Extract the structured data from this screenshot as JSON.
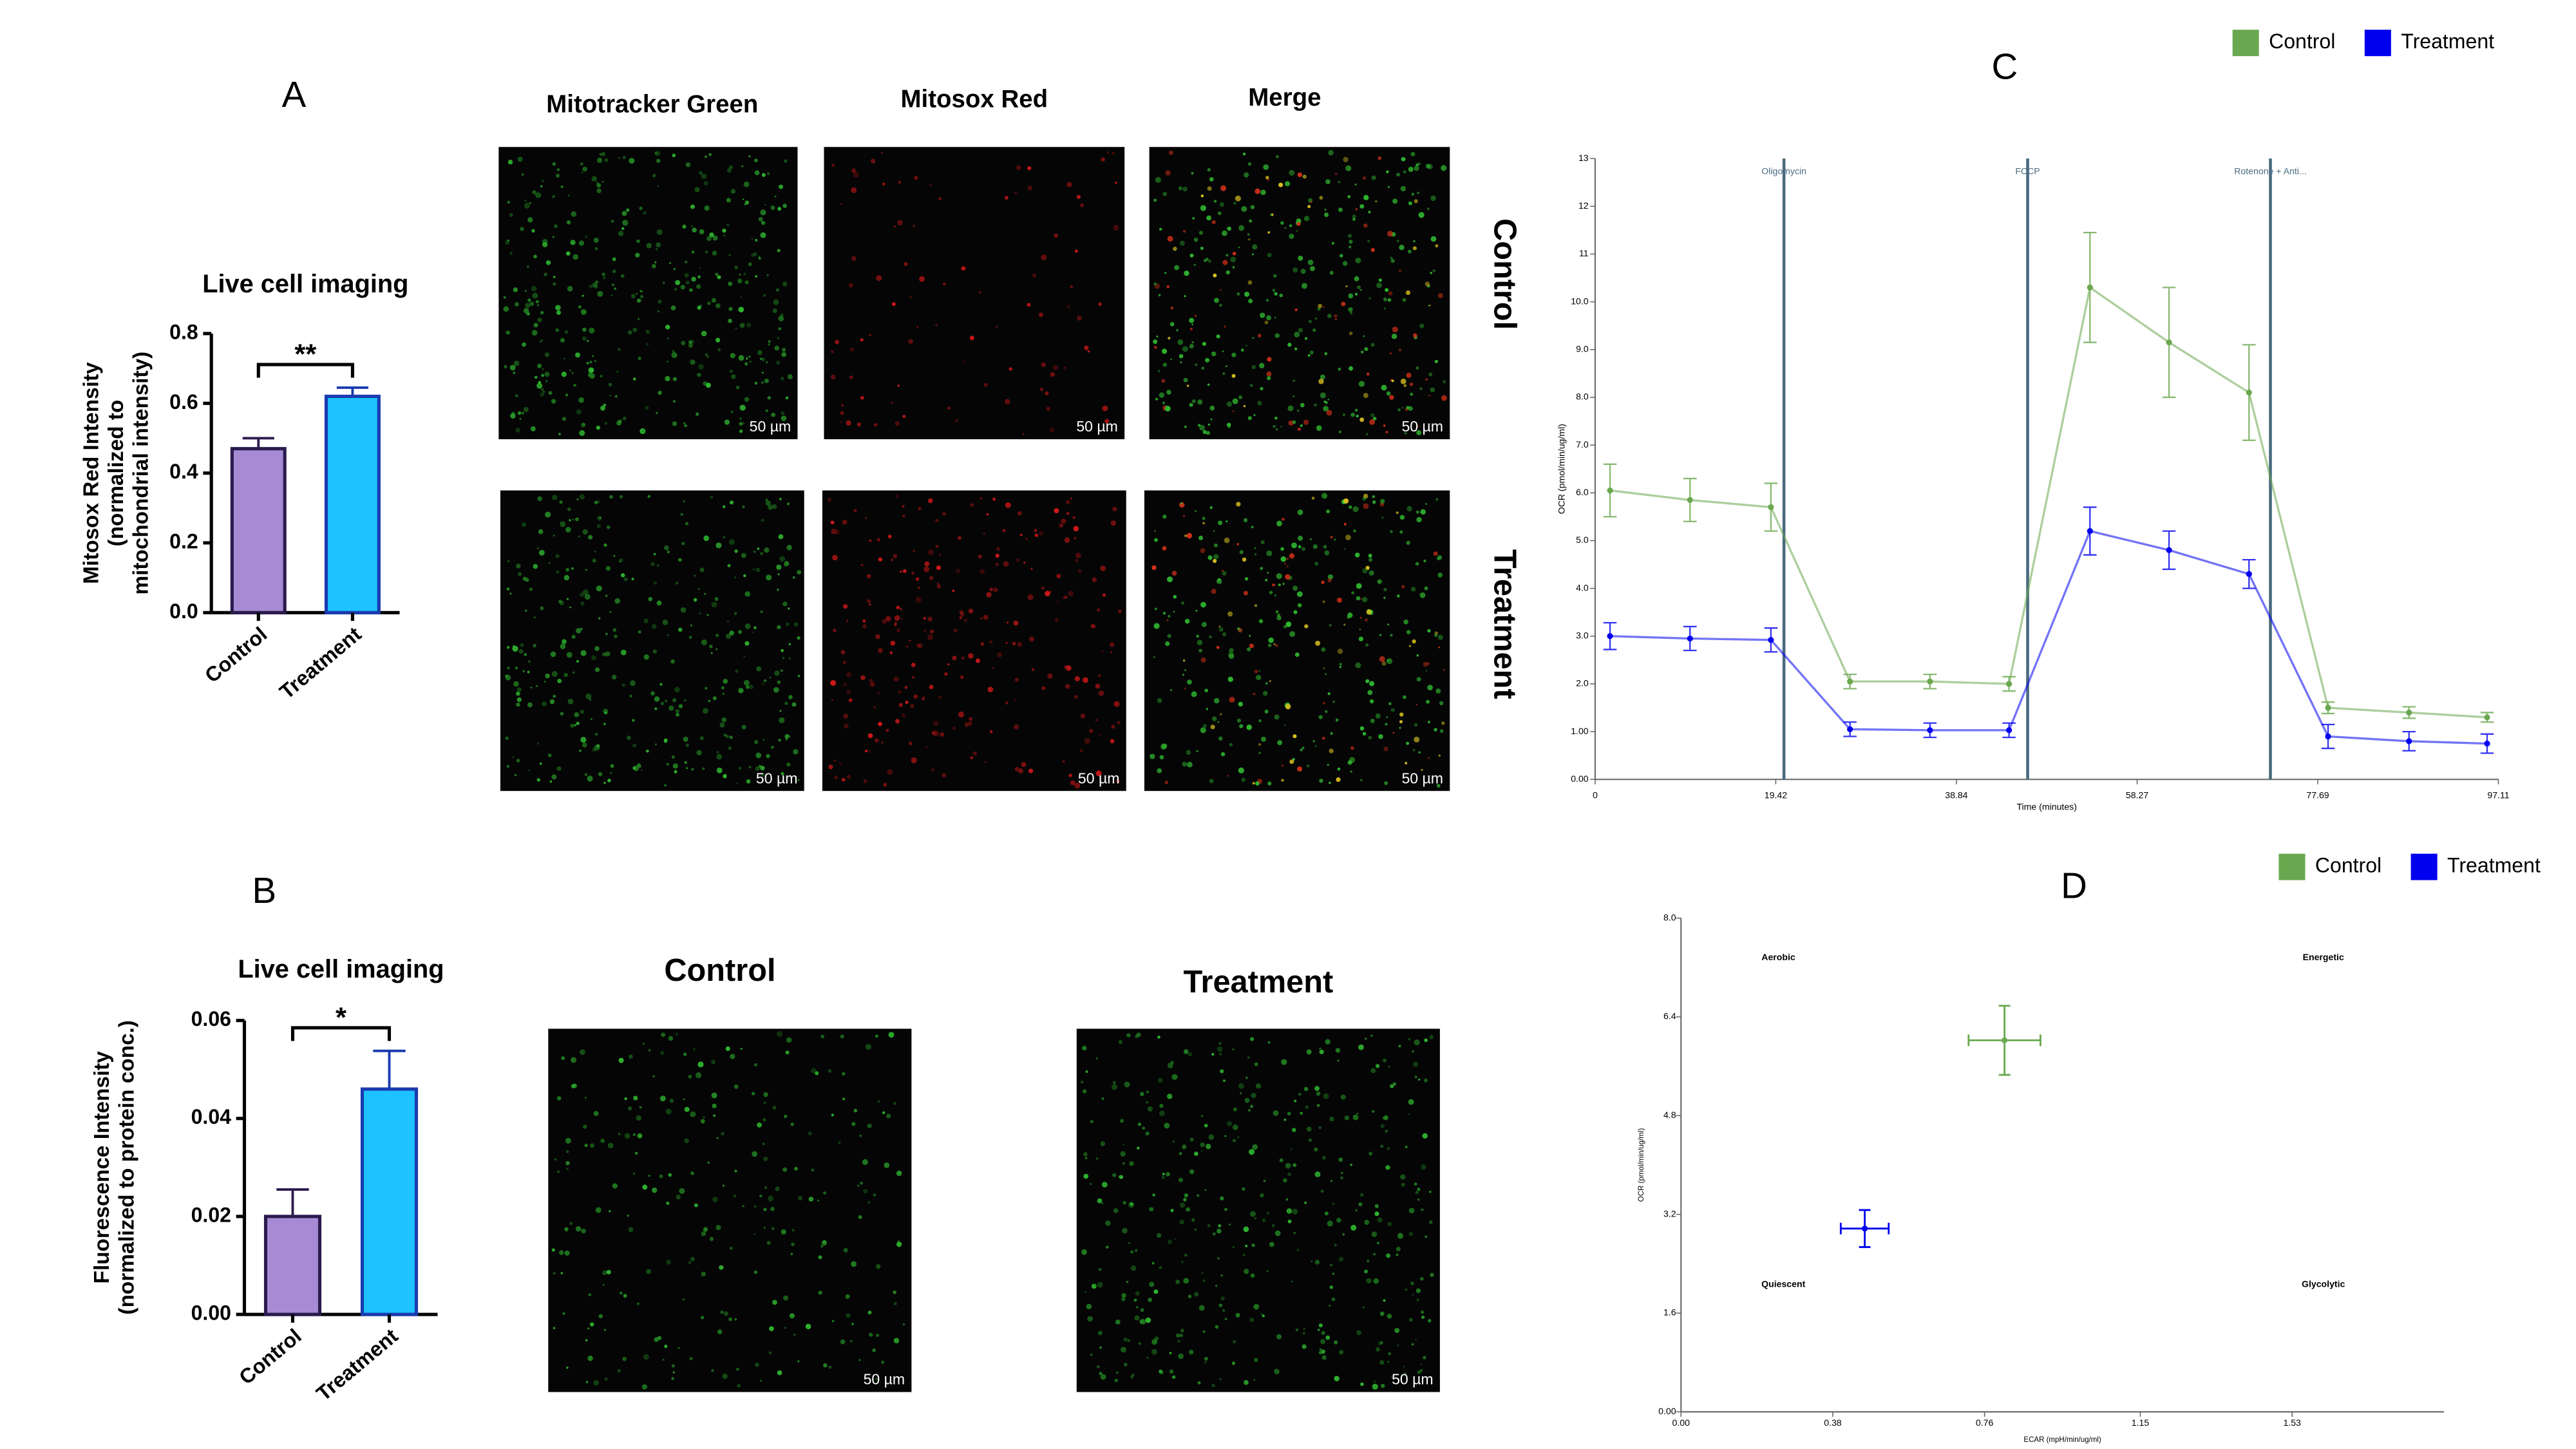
{
  "chart_data": [
    {
      "type": "bar",
      "panel_label": "A",
      "title": "Live cell imaging",
      "ylabel": [
        "Mitosox Red Intensity",
        "(normalized to",
        "mitochondrial intensity)"
      ],
      "categories": [
        "Control",
        "Treatment"
      ],
      "values": [
        0.47,
        0.62
      ],
      "errors": [
        0.03,
        0.025
      ],
      "colors": [
        "#a68bd4",
        "#1dc2ff"
      ],
      "edge_colors": [
        "#2b1a4d",
        "#1a3bb0"
      ],
      "ylim": [
        0,
        0.8
      ],
      "yticks": [
        {
          "value": 0,
          "label": "0.0"
        },
        {
          "value": 0.2,
          "label": "0.2"
        },
        {
          "value": 0.4,
          "label": "0.4"
        },
        {
          "value": 0.6,
          "label": "0.6"
        },
        {
          "value": 0.8,
          "label": "0.8"
        }
      ],
      "significance": "**"
    },
    {
      "type": "bar",
      "panel_label": "B",
      "title": "Live cell imaging",
      "ylabel": [
        "Fluorescence Intensity",
        "(normalized to protein conc.)"
      ],
      "categories": [
        "Control",
        "Treatment"
      ],
      "values": [
        0.02,
        0.046
      ],
      "errors": [
        0.0055,
        0.0078
      ],
      "colors": [
        "#a68bd4",
        "#1dc2ff"
      ],
      "edge_colors": [
        "#2b1a4d",
        "#1a3bb0"
      ],
      "ylim": [
        0,
        0.06
      ],
      "yticks": [
        {
          "value": 0,
          "label": "0.00"
        },
        {
          "value": 0.02,
          "label": "0.02"
        },
        {
          "value": 0.04,
          "label": "0.04"
        },
        {
          "value": 0.06,
          "label": "0.06"
        }
      ],
      "significance": "*"
    },
    {
      "type": "line",
      "panel_label": "C",
      "xlabel": "Time (minutes)",
      "ylabel": "OCR (pmol/min/ug/ml)",
      "x": [
        1.6,
        10.2,
        18.9,
        27.4,
        36,
        44.5,
        53.2,
        61.7,
        70.3,
        78.8,
        87.5,
        95.9
      ],
      "series": [
        {
          "name": "Control",
          "color": "#6aa84f",
          "values": [
            6.05,
            5.85,
            5.7,
            2.05,
            2.05,
            2.0,
            10.3,
            9.15,
            8.1,
            1.5,
            1.4,
            1.3
          ],
          "errors": [
            0.55,
            0.45,
            0.5,
            0.15,
            0.15,
            0.15,
            1.15,
            1.15,
            1.0,
            0.12,
            0.12,
            0.1
          ]
        },
        {
          "name": "Treatment",
          "color": "#0000ee",
          "values": [
            3.0,
            2.95,
            2.92,
            1.05,
            1.03,
            1.03,
            5.2,
            4.8,
            4.3,
            0.9,
            0.8,
            0.75
          ],
          "errors": [
            0.28,
            0.25,
            0.25,
            0.15,
            0.15,
            0.15,
            0.5,
            0.4,
            0.3,
            0.25,
            0.2,
            0.2
          ]
        }
      ],
      "events": [
        {
          "x": 20.3,
          "label": "Oligomycin"
        },
        {
          "x": 46.5,
          "label": "FCCP"
        },
        {
          "x": 72.6,
          "label": "Rotenone + Anti..."
        }
      ],
      "xlim": [
        0,
        97.11
      ],
      "xticks": [
        0,
        19.42,
        38.84,
        58.27,
        77.69,
        97.11
      ],
      "ylim": [
        0,
        13
      ],
      "yticks": [
        {
          "value": 0,
          "label": "0.00"
        },
        {
          "value": 1,
          "label": "1.00"
        },
        {
          "value": 2,
          "label": "2.0"
        },
        {
          "value": 3,
          "label": "3.0"
        },
        {
          "value": 4,
          "label": "4.0"
        },
        {
          "value": 5,
          "label": "5.0"
        },
        {
          "value": 6,
          "label": "6.0"
        },
        {
          "value": 7,
          "label": "7.0"
        },
        {
          "value": 8,
          "label": "8.0"
        },
        {
          "value": 9,
          "label": "9.0"
        },
        {
          "value": 10,
          "label": "10.0"
        },
        11,
        12,
        13
      ]
    },
    {
      "type": "scatter",
      "panel_label": "D",
      "xlabel": "ECAR (mpH/min/ug/ml)",
      "ylabel": "OCR (pmol/min/ug/ml)",
      "quadrant_labels": [
        "Aerobic",
        "Energetic",
        "Quiescent",
        "Glycolytic"
      ],
      "series": [
        {
          "name": "Control",
          "color": "#6aa84f",
          "x": [
            0.81
          ],
          "values": [
            6.02
          ],
          "x_errors": [
            0.09
          ],
          "errors": [
            0.56
          ]
        },
        {
          "name": "Treatment",
          "color": "#0000ee",
          "x": [
            0.46
          ],
          "values": [
            2.97
          ],
          "x_errors": [
            0.06
          ],
          "errors": [
            0.3
          ]
        }
      ],
      "xlim": [
        0,
        1.91
      ],
      "xticks": [
        {
          "value": 0,
          "label": "0.00"
        },
        0.38,
        0.76,
        1.15,
        1.53
      ],
      "ylim": [
        0,
        8
      ],
      "yticks": [
        {
          "value": 0,
          "label": "0.00"
        },
        1.6,
        3.2,
        4.8,
        6.4,
        {
          "value": 8,
          "label": "8.0"
        }
      ]
    }
  ],
  "images": {
    "columns": [
      "Mitotracker Green",
      "Mitosox Red",
      "Merge"
    ],
    "rows": [
      "Control",
      "Treatment"
    ],
    "panel_b_headers": [
      "Control",
      "Treatment"
    ],
    "scale_bar": "50 µm"
  }
}
